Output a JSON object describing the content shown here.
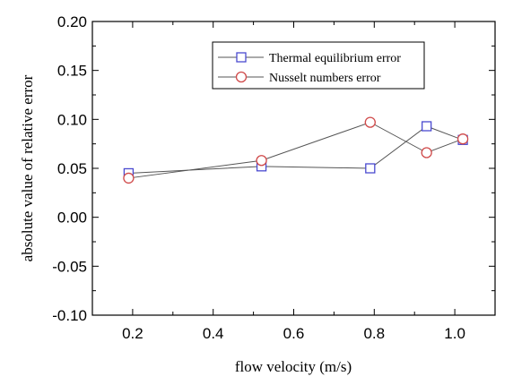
{
  "chart_data": {
    "type": "line",
    "xlabel": "flow velocity (m/s)",
    "ylabel": "absolute value of relative error",
    "xlim": [
      0.1,
      1.1
    ],
    "ylim": [
      -0.1,
      0.2
    ],
    "x_ticks": [
      0.2,
      0.4,
      0.6,
      0.8,
      1.0
    ],
    "x_tick_labels": [
      "0.2",
      "0.4",
      "0.6",
      "0.8",
      "1.0"
    ],
    "y_ticks": [
      -0.1,
      -0.05,
      0.0,
      0.05,
      0.1,
      0.15,
      0.2
    ],
    "y_tick_labels": [
      "-0.10",
      "-0.05",
      "0.00",
      "0.05",
      "0.10",
      "0.15",
      "0.20"
    ],
    "grid": false,
    "legend_position": "top-right",
    "series": [
      {
        "name": "Thermal equilibrium error",
        "marker": "square",
        "color": "#4a4ad0",
        "x": [
          0.19,
          0.52,
          0.79,
          0.93,
          1.02
        ],
        "y": [
          0.045,
          0.052,
          0.05,
          0.093,
          0.079
        ]
      },
      {
        "name": "Nusselt numbers error",
        "marker": "circle",
        "color": "#d04a4a",
        "x": [
          0.19,
          0.52,
          0.79,
          0.93,
          1.02
        ],
        "y": [
          0.04,
          0.058,
          0.097,
          0.066,
          0.08
        ]
      }
    ]
  }
}
